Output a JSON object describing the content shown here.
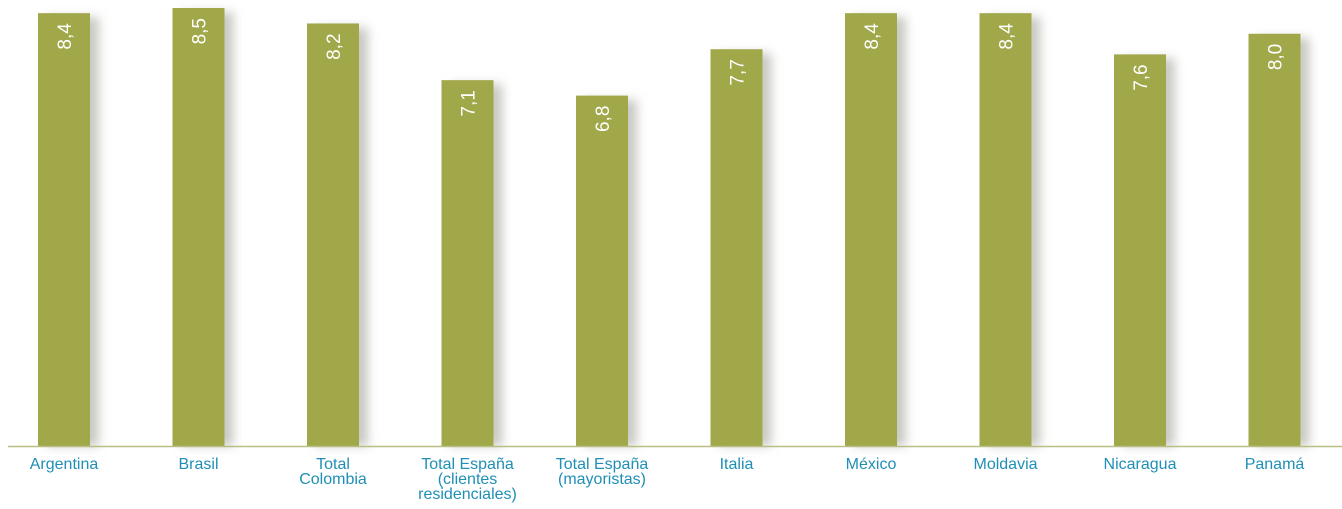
{
  "chart_data": {
    "type": "bar",
    "categories": [
      [
        "Argentina"
      ],
      [
        "Brasil"
      ],
      [
        "Total",
        "Colombia"
      ],
      [
        "Total España",
        "(clientes",
        "residenciales)"
      ],
      [
        "Total España",
        "(mayoristas)"
      ],
      [
        "Italia"
      ],
      [
        "México"
      ],
      [
        "Moldavia"
      ],
      [
        "Nicaragua"
      ],
      [
        "Panamá"
      ]
    ],
    "values": [
      8.4,
      8.5,
      8.2,
      7.1,
      6.8,
      7.7,
      8.4,
      8.4,
      7.6,
      8.0
    ],
    "value_labels": [
      "8,4",
      "8,5",
      "8,2",
      "7,1",
      "6,8",
      "7,7",
      "8,4",
      "8,4",
      "7,6",
      "8,0"
    ],
    "ylim": [
      0,
      8.5
    ],
    "grid": false,
    "legend": "none"
  },
  "colors": {
    "bar": "#a1a84a",
    "bar_shadow": "#c9c9c4",
    "axis": "#b9bf84",
    "value_label": "#ffffff",
    "category_label": "#1f8fb5"
  }
}
